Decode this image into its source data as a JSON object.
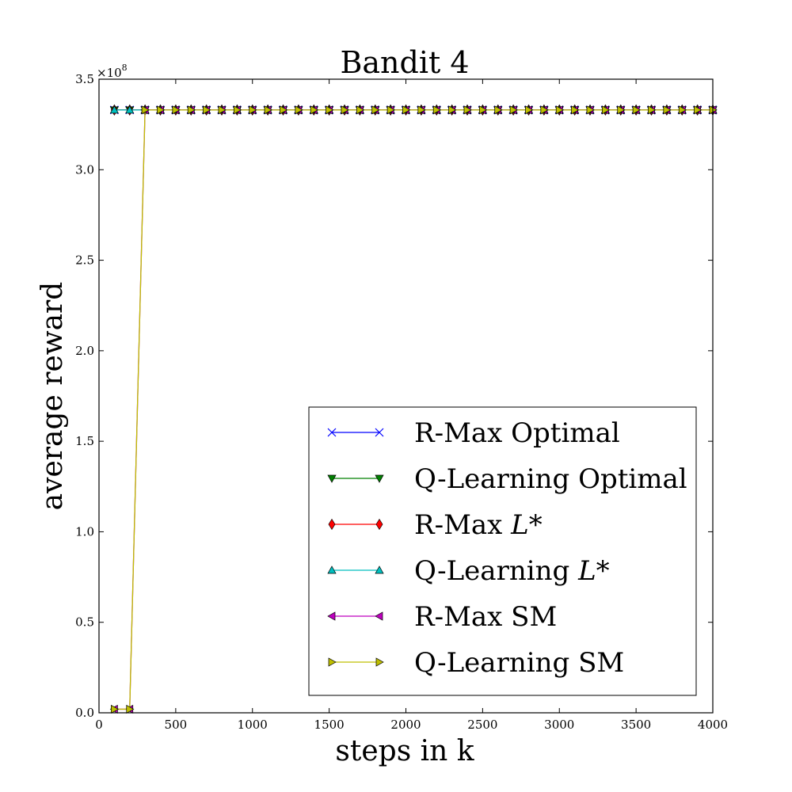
{
  "chart_data": {
    "type": "line",
    "title": "Bandit 4",
    "xlabel": "steps in k",
    "ylabel": "average reward",
    "xlim": [
      0,
      4000
    ],
    "ylim": [
      0,
      3.5
    ],
    "y_scale_label": "×10",
    "y_scale_exp": "8",
    "xticks": [
      0,
      500,
      1000,
      1500,
      2000,
      2500,
      3000,
      3500,
      4000
    ],
    "yticks": [
      0.0,
      0.5,
      1.0,
      1.5,
      2.0,
      2.5,
      3.0,
      3.5
    ],
    "ytick_labels": [
      "0.0",
      "0.5",
      "1.0",
      "1.5",
      "2.0",
      "2.5",
      "3.0",
      "3.5"
    ],
    "grid": false,
    "legend_position": "lower-right",
    "plateau": 3.33,
    "series": [
      {
        "name_prefix": "R-Max Optimal",
        "name_italic": "",
        "color": "#0000ff",
        "marker": "x",
        "x_start": 100,
        "x_end": 4000,
        "x_step": 100,
        "initial": []
      },
      {
        "name_prefix": "Q-Learning Optimal",
        "name_italic": "",
        "color": "#008000",
        "marker": "tri-down",
        "x_start": 100,
        "x_end": 4000,
        "x_step": 100,
        "initial": []
      },
      {
        "name_prefix": "R-Max ",
        "name_italic": "L*",
        "color": "#ff0000",
        "marker": "diamond",
        "x_start": 100,
        "x_end": 4000,
        "x_step": 100,
        "initial": []
      },
      {
        "name_prefix": "Q-Learning ",
        "name_italic": "L*",
        "color": "#00bfbf",
        "marker": "tri-up",
        "x_start": 100,
        "x_end": 4000,
        "x_step": 100,
        "initial": []
      },
      {
        "name_prefix": "R-Max SM",
        "name_italic": "",
        "color": "#bf00bf",
        "marker": "tri-left",
        "x_start": 100,
        "x_end": 4000,
        "x_step": 100,
        "initial": [
          0.02,
          0.02
        ]
      },
      {
        "name_prefix": "Q-Learning SM",
        "name_italic": "",
        "color": "#bfbf00",
        "marker": "tri-right",
        "x_start": 100,
        "x_end": 4000,
        "x_step": 100,
        "initial": [
          0.02,
          0.02
        ]
      }
    ]
  }
}
